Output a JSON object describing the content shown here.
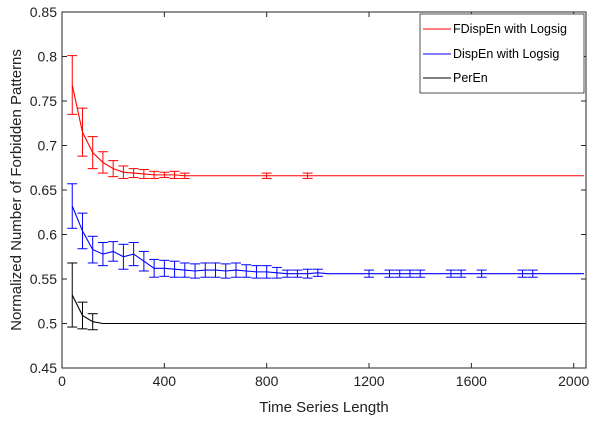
{
  "chart_data": {
    "type": "line",
    "xlabel": "Time Series Length",
    "ylabel": "Normalized Number of Forbidden Patterns",
    "xlim": [
      0,
      2048
    ],
    "ylim": [
      0.45,
      0.85
    ],
    "xticks": [
      0,
      400,
      800,
      1200,
      1600,
      2000
    ],
    "xtick_labels": [
      "0",
      "400",
      "800",
      "1200",
      "1600",
      "2000"
    ],
    "yticks": [
      0.45,
      0.5,
      0.55,
      0.6,
      0.65,
      0.7,
      0.75,
      0.8,
      0.85
    ],
    "ytick_labels": [
      "0.45",
      "0.5",
      "0.55",
      "0.6",
      "0.65",
      "0.7",
      "0.75",
      "0.8",
      "0.85"
    ],
    "grid": false,
    "legend_position": "top-right",
    "series": [
      {
        "name": "FDispEn with Logsig",
        "color": "#ff0000",
        "x": [
          40,
          80,
          120,
          160,
          200,
          240,
          280,
          320,
          360,
          400,
          440,
          480,
          520,
          560,
          600,
          640,
          680,
          720,
          760,
          800,
          840,
          880,
          920,
          960,
          1000,
          1040,
          1080,
          1120,
          1160,
          1200,
          1240,
          1280,
          1320,
          1360,
          1400,
          1440,
          1480,
          1520,
          1560,
          1600,
          1640,
          1680,
          1720,
          1760,
          1800,
          1840,
          1880,
          1920,
          1960,
          2000,
          2040
        ],
        "y": [
          0.768,
          0.715,
          0.692,
          0.681,
          0.674,
          0.67,
          0.669,
          0.668,
          0.667,
          0.667,
          0.667,
          0.666,
          0.666,
          0.666,
          0.666,
          0.666,
          0.666,
          0.666,
          0.666,
          0.666,
          0.666,
          0.666,
          0.666,
          0.666,
          0.666,
          0.666,
          0.666,
          0.666,
          0.666,
          0.666,
          0.666,
          0.666,
          0.666,
          0.666,
          0.666,
          0.666,
          0.666,
          0.666,
          0.666,
          0.666,
          0.666,
          0.666,
          0.666,
          0.666,
          0.666,
          0.666,
          0.666,
          0.666,
          0.666,
          0.666,
          0.666
        ],
        "err": [
          0.033,
          0.027,
          0.018,
          0.012,
          0.009,
          0.007,
          0.005,
          0.005,
          0.004,
          0.003,
          0.004,
          0.003,
          0,
          0,
          0,
          0,
          0,
          0,
          0,
          0.003,
          0,
          0,
          0,
          0.003,
          0,
          0,
          0,
          0,
          0,
          0,
          0,
          0,
          0,
          0,
          0,
          0,
          0,
          0,
          0,
          0,
          0,
          0,
          0,
          0,
          0,
          0,
          0,
          0,
          0,
          0,
          0
        ]
      },
      {
        "name": "DispEn with Logsig",
        "color": "#0000ff",
        "x": [
          40,
          80,
          120,
          160,
          200,
          240,
          280,
          320,
          360,
          400,
          440,
          480,
          520,
          560,
          600,
          640,
          680,
          720,
          760,
          800,
          840,
          880,
          920,
          960,
          1000,
          1040,
          1080,
          1120,
          1160,
          1200,
          1240,
          1280,
          1320,
          1360,
          1400,
          1440,
          1480,
          1520,
          1560,
          1600,
          1640,
          1680,
          1720,
          1760,
          1800,
          1840,
          1880,
          1920,
          1960,
          2000,
          2040
        ],
        "y": [
          0.632,
          0.604,
          0.583,
          0.578,
          0.581,
          0.575,
          0.578,
          0.57,
          0.562,
          0.562,
          0.561,
          0.56,
          0.559,
          0.56,
          0.56,
          0.559,
          0.56,
          0.559,
          0.558,
          0.558,
          0.557,
          0.556,
          0.556,
          0.556,
          0.557,
          0.556,
          0.556,
          0.556,
          0.556,
          0.556,
          0.556,
          0.556,
          0.556,
          0.556,
          0.556,
          0.556,
          0.556,
          0.556,
          0.556,
          0.556,
          0.556,
          0.556,
          0.556,
          0.556,
          0.556,
          0.556,
          0.556,
          0.556,
          0.556,
          0.556,
          0.556
        ],
        "err": [
          0.025,
          0.02,
          0.015,
          0.013,
          0.011,
          0.014,
          0.013,
          0.011,
          0.01,
          0.009,
          0.009,
          0.008,
          0.008,
          0.008,
          0.008,
          0.008,
          0.008,
          0.007,
          0.007,
          0.007,
          0.006,
          0.004,
          0.004,
          0.005,
          0.004,
          0,
          0,
          0,
          0,
          0.004,
          0,
          0.004,
          0.004,
          0.004,
          0.004,
          0,
          0,
          0.004,
          0.004,
          0,
          0.004,
          0,
          0,
          0,
          0.004,
          0.004,
          0,
          0,
          0,
          0,
          0
        ]
      },
      {
        "name": "PerEn",
        "color": "#000000",
        "x": [
          40,
          80,
          120,
          160,
          200,
          240,
          280,
          320,
          360,
          400,
          440,
          480,
          520,
          560,
          600,
          640,
          680,
          720,
          760,
          800,
          840,
          880,
          920,
          960,
          1000,
          1040,
          1080,
          1120,
          1160,
          1200,
          1240,
          1280,
          1320,
          1360,
          1400,
          1440,
          1480,
          1520,
          1560,
          1600,
          1640,
          1680,
          1720,
          1760,
          1800,
          1840,
          1880,
          1920,
          1960,
          2000,
          2040
        ],
        "y": [
          0.532,
          0.509,
          0.502,
          0.5,
          0.5,
          0.5,
          0.5,
          0.5,
          0.5,
          0.5,
          0.5,
          0.5,
          0.5,
          0.5,
          0.5,
          0.5,
          0.5,
          0.5,
          0.5,
          0.5,
          0.5,
          0.5,
          0.5,
          0.5,
          0.5,
          0.5,
          0.5,
          0.5,
          0.5,
          0.5,
          0.5,
          0.5,
          0.5,
          0.5,
          0.5,
          0.5,
          0.5,
          0.5,
          0.5,
          0.5,
          0.5,
          0.5,
          0.5,
          0.5,
          0.5,
          0.5,
          0.5,
          0.5,
          0.5,
          0.5,
          0.5
        ],
        "err": [
          0.036,
          0.015,
          0.009,
          0,
          0,
          0,
          0,
          0,
          0,
          0,
          0,
          0,
          0,
          0,
          0,
          0,
          0,
          0,
          0,
          0,
          0,
          0,
          0,
          0,
          0,
          0,
          0,
          0,
          0,
          0,
          0,
          0,
          0,
          0,
          0,
          0,
          0,
          0,
          0,
          0,
          0,
          0,
          0,
          0,
          0,
          0,
          0,
          0,
          0,
          0,
          0
        ]
      }
    ]
  }
}
